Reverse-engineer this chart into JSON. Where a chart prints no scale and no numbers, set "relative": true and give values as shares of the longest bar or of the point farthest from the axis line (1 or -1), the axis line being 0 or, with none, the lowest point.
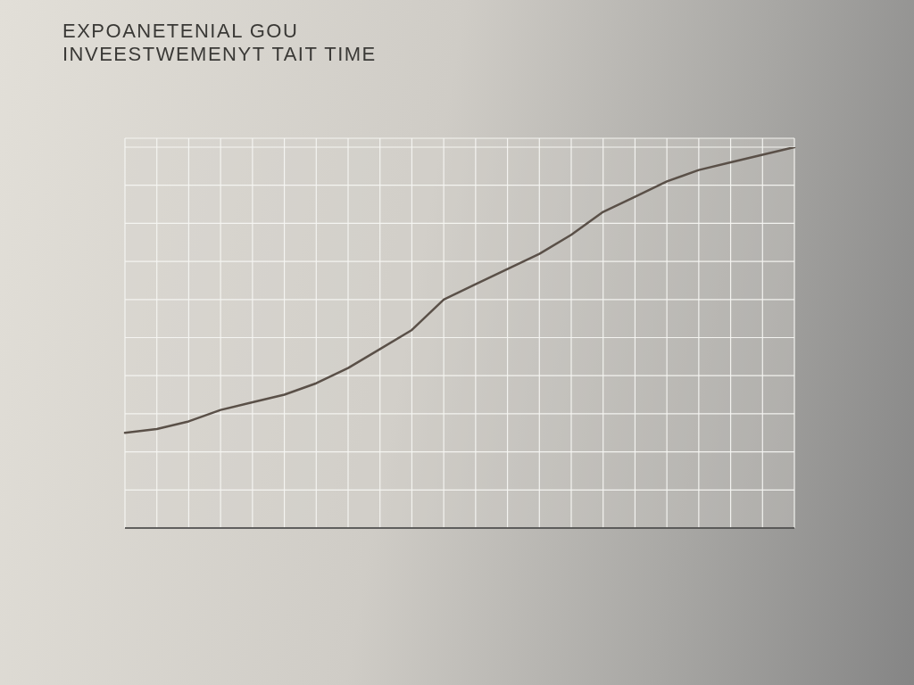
{
  "chart_data": {
    "type": "line",
    "title": "EXPOANETENIAL GOU",
    "subtitle": "INVEESTWEMENYT TAIT TIME",
    "categories": [
      null,
      null,
      null,
      null,
      null,
      null,
      null,
      null,
      null,
      null,
      null,
      null,
      null,
      null,
      null,
      null,
      null,
      null,
      null,
      null,
      null,
      null
    ],
    "series": [
      {
        "color": "#5a5048",
        "values": [
          0.25,
          0.26,
          0.28,
          0.31,
          0.33,
          0.35,
          0.38,
          0.42,
          0.47,
          0.52,
          0.6,
          0.64,
          0.68,
          0.72,
          0.77,
          0.83,
          0.87,
          0.91,
          0.94,
          0.96,
          0.98,
          1
        ]
      }
    ],
    "relative": true,
    "grid": true
  }
}
